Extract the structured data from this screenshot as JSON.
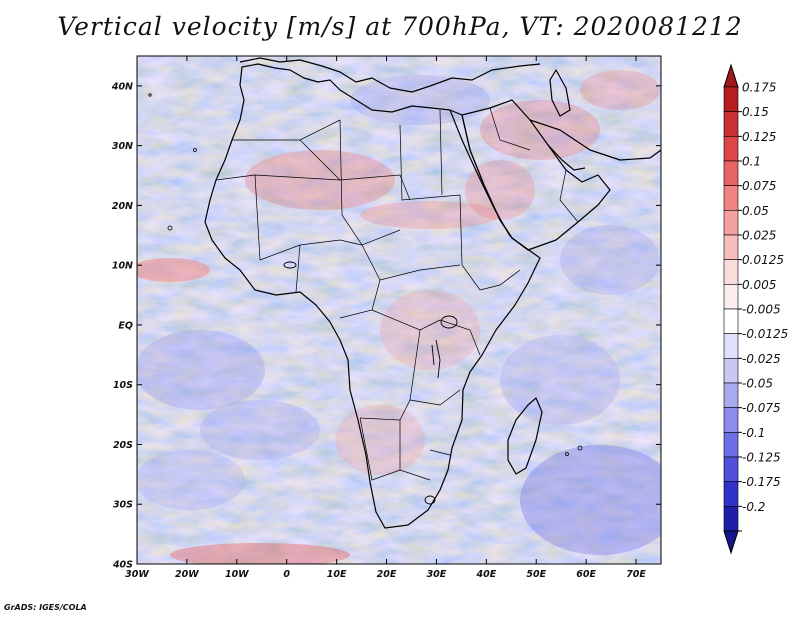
{
  "title": "Vertical velocity [m/s] at 700hPa, VT: 2020081212",
  "credit": "GrADS: IGES/COLA",
  "map": {
    "lon_range": [
      -30,
      75
    ],
    "lat_range": [
      -40,
      45
    ],
    "lon_ticks": [
      {
        "value": -30,
        "label": "30W"
      },
      {
        "value": -20,
        "label": "20W"
      },
      {
        "value": -10,
        "label": "10W"
      },
      {
        "value": 0,
        "label": "0"
      },
      {
        "value": 10,
        "label": "10E"
      },
      {
        "value": 20,
        "label": "20E"
      },
      {
        "value": 30,
        "label": "30E"
      },
      {
        "value": 40,
        "label": "40E"
      },
      {
        "value": 50,
        "label": "50E"
      },
      {
        "value": 60,
        "label": "60E"
      },
      {
        "value": 70,
        "label": "70E"
      }
    ],
    "lat_ticks": [
      {
        "value": 40,
        "label": "40N"
      },
      {
        "value": 30,
        "label": "30N"
      },
      {
        "value": 20,
        "label": "20N"
      },
      {
        "value": 10,
        "label": "10N"
      },
      {
        "value": 0,
        "label": "EQ"
      },
      {
        "value": -10,
        "label": "10S"
      },
      {
        "value": -20,
        "label": "20S"
      },
      {
        "value": -30,
        "label": "30S"
      },
      {
        "value": -40,
        "label": "40S"
      }
    ]
  },
  "colorbar": {
    "levels": [
      {
        "label": "0.175",
        "color": "#b41e1e"
      },
      {
        "label": "0.15",
        "color": "#c83232"
      },
      {
        "label": "0.125",
        "color": "#dc4646"
      },
      {
        "label": "0.1",
        "color": "#e86464"
      },
      {
        "label": "0.075",
        "color": "#f08282"
      },
      {
        "label": "0.05",
        "color": "#f5a0a0"
      },
      {
        "label": "0.025",
        "color": "#f8bebe"
      },
      {
        "label": "0.0125",
        "color": "#fbdcdc"
      },
      {
        "label": "0.005",
        "color": "#fdeeee"
      },
      {
        "label": "-0.005",
        "color": "#ffffff"
      },
      {
        "label": "-0.0125",
        "color": "#e0e0fa"
      },
      {
        "label": "-0.025",
        "color": "#c8c8f5"
      },
      {
        "label": "-0.05",
        "color": "#aaaaf0"
      },
      {
        "label": "-0.075",
        "color": "#8c8ceb"
      },
      {
        "label": "-0.1",
        "color": "#6e6ee6"
      },
      {
        "label": "-0.125",
        "color": "#5050dc"
      },
      {
        "label": "-0.175",
        "color": "#3232c8"
      },
      {
        "label": "-0.2",
        "color": "#1e1eaa"
      }
    ],
    "top_cap_color": "#a01818",
    "bottom_cap_color": "#14148c"
  }
}
